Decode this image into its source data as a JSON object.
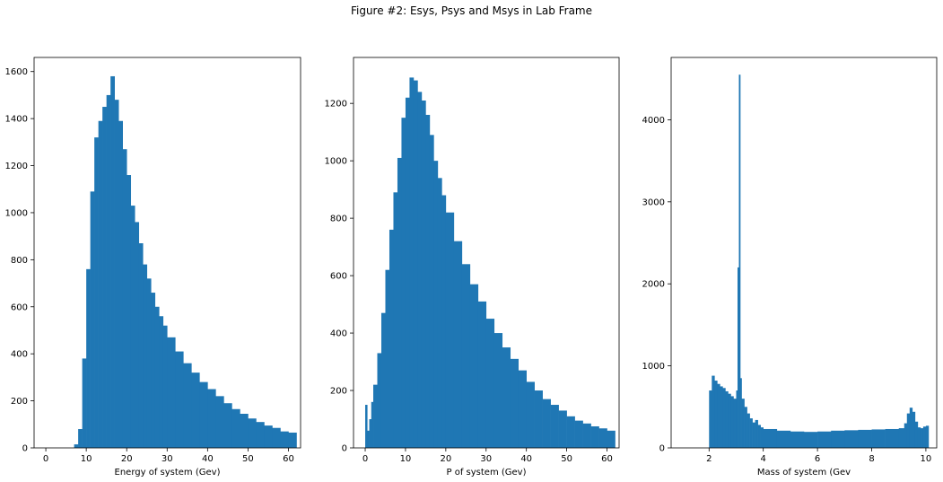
{
  "figure": {
    "suptitle": "Figure #2: Esys, Psys and Msys in Lab Frame",
    "bar_color": "#1f77b4"
  },
  "chart_data": [
    {
      "type": "histogram",
      "xlabel": "Energy of system (Gev)",
      "ylabel": "",
      "xlim": [
        -2.9,
        63
      ],
      "ylim": [
        0,
        1660
      ],
      "xticks": [
        0,
        10,
        20,
        30,
        40,
        50,
        60
      ],
      "yticks": [
        0,
        200,
        400,
        600,
        800,
        1000,
        1200,
        1400,
        1600
      ],
      "grid": false,
      "bins": {
        "x": [
          6,
          7,
          8,
          9,
          10,
          11,
          12,
          13,
          14,
          15,
          16,
          17,
          18,
          19,
          20,
          21,
          22,
          23,
          24,
          25,
          26,
          27,
          28,
          29,
          30,
          32,
          34,
          36,
          38,
          40,
          42,
          44,
          46,
          48,
          50,
          52,
          54,
          56,
          58,
          60
        ],
        "y": [
          0,
          15,
          80,
          380,
          760,
          1090,
          1320,
          1390,
          1450,
          1500,
          1580,
          1480,
          1390,
          1270,
          1160,
          1030,
          960,
          870,
          780,
          720,
          660,
          600,
          560,
          520,
          470,
          410,
          360,
          320,
          280,
          250,
          220,
          190,
          165,
          145,
          125,
          110,
          95,
          85,
          70,
          65
        ]
      }
    },
    {
      "type": "histogram",
      "xlabel": "P of system (Gev)",
      "ylabel": "",
      "xlim": [
        -2.9,
        63
      ],
      "ylim": [
        0,
        1360
      ],
      "xticks": [
        0,
        10,
        20,
        30,
        40,
        50,
        60
      ],
      "yticks": [
        0,
        200,
        400,
        600,
        800,
        1000,
        1200
      ],
      "grid": false,
      "bins": {
        "x": [
          0,
          0.5,
          1,
          1.5,
          2,
          3,
          4,
          5,
          6,
          7,
          8,
          9,
          10,
          11,
          12,
          13,
          14,
          15,
          16,
          17,
          18,
          19,
          20,
          22,
          24,
          26,
          28,
          30,
          32,
          34,
          36,
          38,
          40,
          42,
          44,
          46,
          48,
          50,
          52,
          54,
          56,
          58,
          60
        ],
        "y": [
          150,
          60,
          100,
          160,
          220,
          330,
          470,
          620,
          760,
          890,
          1010,
          1150,
          1220,
          1290,
          1280,
          1240,
          1210,
          1160,
          1090,
          1000,
          940,
          880,
          820,
          720,
          640,
          570,
          510,
          450,
          400,
          350,
          310,
          270,
          230,
          200,
          170,
          150,
          130,
          110,
          95,
          85,
          75,
          68,
          60
        ]
      }
    },
    {
      "type": "histogram",
      "xlabel": "Mass of system (Gev",
      "ylabel": "",
      "xlim": [
        0.6,
        10.4
      ],
      "ylim": [
        0,
        4760
      ],
      "xticks": [
        2,
        4,
        6,
        8,
        10
      ],
      "yticks": [
        0,
        1000,
        2000,
        3000,
        4000
      ],
      "grid": false,
      "bins": {
        "x": [
          2.0,
          2.1,
          2.2,
          2.3,
          2.4,
          2.5,
          2.6,
          2.7,
          2.8,
          2.9,
          3.0,
          3.05,
          3.1,
          3.15,
          3.2,
          3.3,
          3.4,
          3.5,
          3.6,
          3.7,
          3.8,
          3.9,
          4.0,
          4.5,
          5.0,
          5.5,
          6.0,
          6.5,
          7.0,
          7.5,
          8.0,
          8.5,
          9.0,
          9.2,
          9.3,
          9.4,
          9.5,
          9.6,
          9.7,
          9.8,
          9.9,
          10.0
        ],
        "y": [
          700,
          880,
          820,
          780,
          750,
          730,
          690,
          660,
          630,
          600,
          700,
          2200,
          4550,
          850,
          600,
          500,
          420,
          360,
          310,
          340,
          280,
          250,
          230,
          210,
          200,
          195,
          200,
          210,
          215,
          220,
          225,
          230,
          240,
          300,
          420,
          490,
          440,
          320,
          250,
          240,
          260,
          270
        ]
      }
    }
  ]
}
